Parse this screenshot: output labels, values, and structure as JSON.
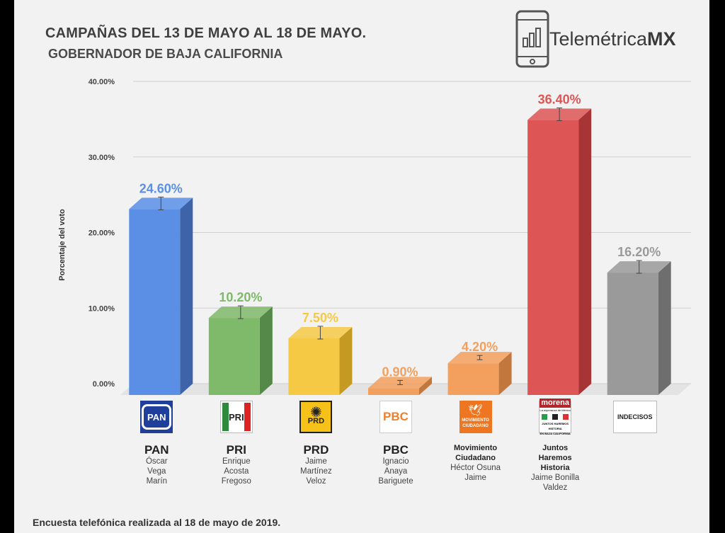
{
  "title": "CAMPAÑAS DEL 13 DE MAYO AL 18 DE MAYO.",
  "subtitle": "GOBERNADOR DE BAJA CALIFORNIA",
  "brand": {
    "name_light": "Telemétrica",
    "name_bold": "MX"
  },
  "footer": "Encuesta telefónica realizada al 18 de mayo de 2019.",
  "chart_data": {
    "type": "bar",
    "ylabel": "Porcentaje del voto",
    "ylim": [
      0,
      40
    ],
    "yticks": [
      "0.00%",
      "10.00%",
      "20.00%",
      "30.00%",
      "40.00%"
    ],
    "grid": true,
    "categories": [
      "PAN",
      "PRI",
      "PRD",
      "PBC",
      "Movimiento Ciudadano",
      "Juntos Haremos Historia",
      "INDECISOS"
    ],
    "values": [
      24.6,
      10.2,
      7.5,
      0.9,
      4.2,
      36.4,
      16.2
    ],
    "labels": [
      "24.60%",
      "10.20%",
      "7.50%",
      "0.90%",
      "4.20%",
      "36.40%",
      "16.20%"
    ],
    "colors": [
      "#5b8fe6",
      "#7fb96a",
      "#f6c945",
      "#f3a05e",
      "#f3a05e",
      "#dd5555",
      "#9a9a9a"
    ],
    "side_colors": [
      "#3e63a8",
      "#55894a",
      "#c49a22",
      "#c2773d",
      "#c2773d",
      "#a83535",
      "#6e6e6e"
    ],
    "label_colors": [
      "#5b8fe6",
      "#7fb96a",
      "#f6c945",
      "#f3a05e",
      "#f3a05e",
      "#dd5555",
      "#9a9a9a"
    ]
  },
  "parties": [
    {
      "abbr": "PAN",
      "candidate": [
        "Óscar",
        "Vega",
        "Marín"
      ],
      "logo": "pan-logo",
      "logo_text": "PAN"
    },
    {
      "abbr": "PRI",
      "candidate": [
        "Enrique",
        "Acosta",
        "Fregoso"
      ],
      "logo": "pri-logo",
      "logo_text": "PRI"
    },
    {
      "abbr": "PRD",
      "candidate": [
        "Jaime",
        "Martínez",
        "Veloz"
      ],
      "logo": "prd-logo",
      "logo_text": "PRD"
    },
    {
      "abbr": "PBC",
      "candidate": [
        "Ignacio",
        "Anaya",
        "Bariguete"
      ],
      "logo": "pbc-logo",
      "logo_text": "PBC"
    },
    {
      "abbr": [
        "Movimiento",
        "Ciudadano"
      ],
      "candidate": [
        "Héctor Osuna",
        "Jaime"
      ],
      "logo": "mc-logo",
      "logo_text": [
        "MOVIMIENTO",
        "CIUDADANO"
      ]
    },
    {
      "abbr": [
        "Juntos",
        "Haremos",
        "Historia"
      ],
      "candidate": [
        "Jaime Bonilla",
        "Valdez"
      ],
      "logo": "morena-logo",
      "logo_text": [
        "morena",
        "La esperanza de México",
        "JUNTOS HAREMOS HISTORIA",
        "EN BAJA CALIFORNIA"
      ]
    },
    {
      "abbr": "",
      "candidate": [],
      "logo": "indecisos-box",
      "logo_text": "INDECISOS"
    }
  ]
}
